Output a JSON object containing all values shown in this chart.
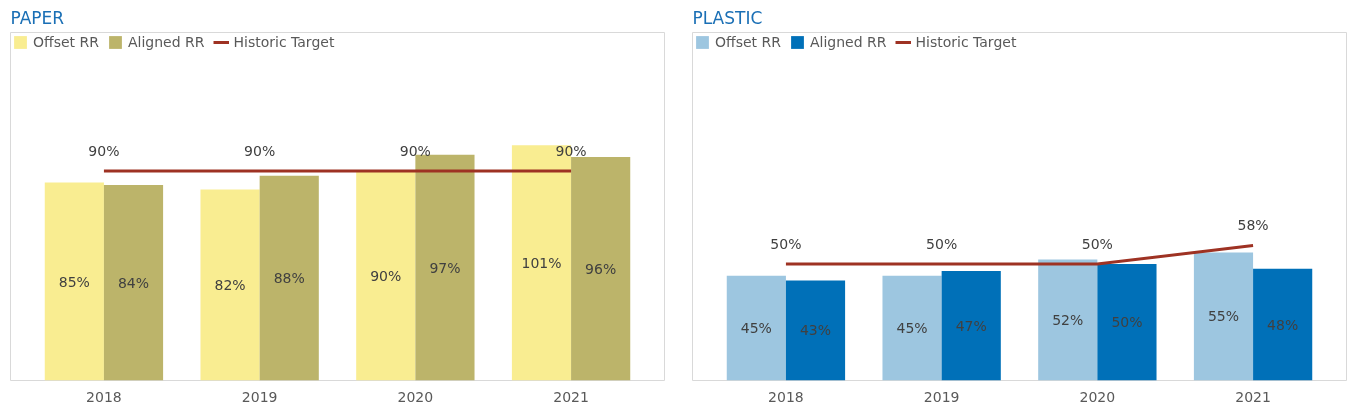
{
  "chart_data": [
    {
      "type": "bar",
      "title": "PAPER",
      "categories": [
        "2018",
        "2019",
        "2020",
        "2021"
      ],
      "legend": "top left",
      "grid": false,
      "series": [
        {
          "name": "Offset RR",
          "color": "#f9ed91",
          "values": [
            85,
            82,
            90,
            101
          ],
          "value_labels": [
            "85%",
            "82%",
            "90%",
            "101%"
          ]
        },
        {
          "name": "Aligned RR",
          "color": "#bcb46a",
          "values": [
            84,
            88,
            97,
            96
          ],
          "value_labels": [
            "84%",
            "88%",
            "97%",
            "96%"
          ]
        },
        {
          "name": "Historic Target",
          "type": "line",
          "color": "#9e3223",
          "values": [
            90,
            90,
            90,
            90
          ],
          "value_labels": [
            "90%",
            "90%",
            "90%",
            "90%"
          ]
        }
      ]
    },
    {
      "type": "bar",
      "title": "PLASTIC",
      "categories": [
        "2018",
        "2019",
        "2020",
        "2021"
      ],
      "legend": "top left",
      "grid": false,
      "series": [
        {
          "name": "Offset RR",
          "color": "#9dc6e0",
          "values": [
            45,
            45,
            52,
            55
          ],
          "value_labels": [
            "45%",
            "45%",
            "52%",
            "55%"
          ]
        },
        {
          "name": "Aligned RR",
          "color": "#0070b8",
          "values": [
            43,
            47,
            50,
            48
          ],
          "value_labels": [
            "43%",
            "47%",
            "50%",
            "48%"
          ]
        },
        {
          "name": "Historic Target",
          "type": "line",
          "color": "#9e3223",
          "values": [
            50,
            50,
            50,
            58
          ],
          "value_labels": [
            "50%",
            "50%",
            "50%",
            "58%"
          ]
        }
      ]
    }
  ]
}
